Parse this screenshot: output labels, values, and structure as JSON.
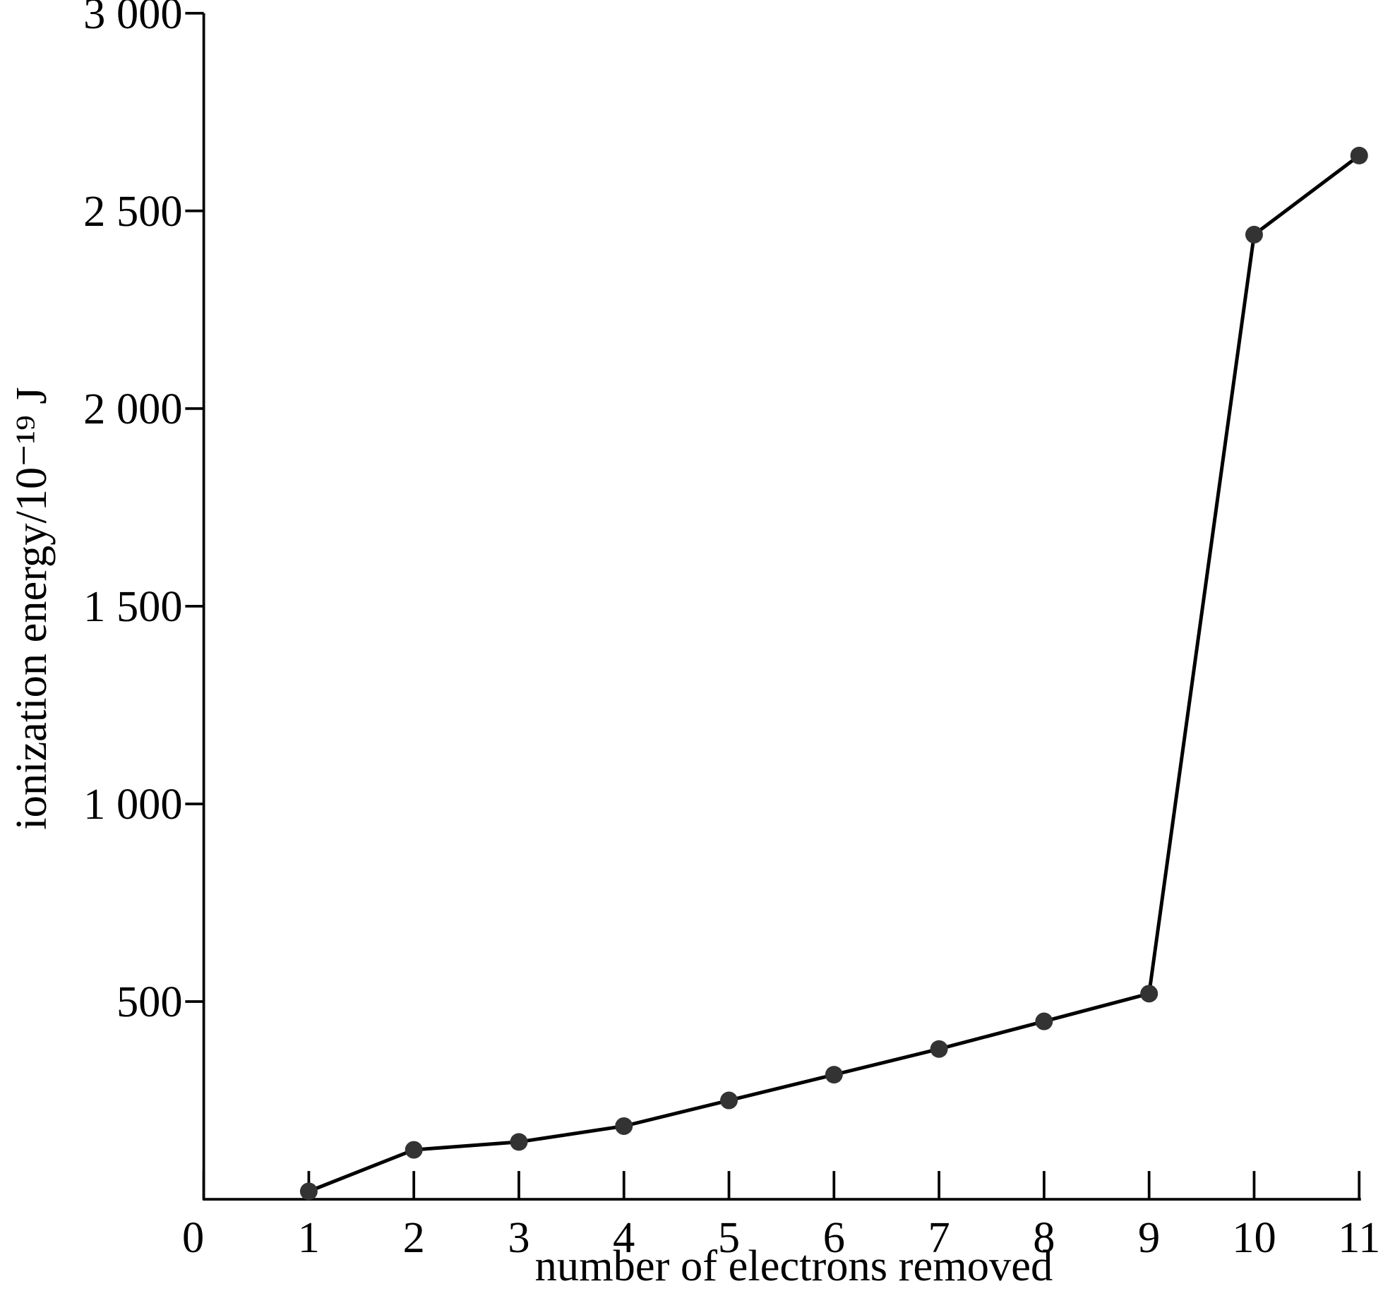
{
  "chart_data": {
    "type": "line",
    "x_label": "number of electrons removed",
    "y_label": "ionization energy/10⁻¹⁹ J",
    "x": [
      1,
      2,
      3,
      4,
      5,
      6,
      7,
      8,
      9,
      10,
      11
    ],
    "values": [
      20,
      125,
      145,
      185,
      250,
      315,
      380,
      450,
      520,
      2440,
      2640
    ],
    "color": "#000000",
    "marker_color": "#333333",
    "xlim": [
      0,
      11
    ],
    "xticks": [
      0,
      1,
      2,
      3,
      4,
      5,
      6,
      7,
      8,
      9,
      10,
      11
    ],
    "ylim": [
      0,
      3000
    ],
    "yticks": [
      500,
      {
        "value": 1000,
        "label": "1 000"
      },
      {
        "value": 1500,
        "label": "1 500"
      },
      {
        "value": 2000,
        "label": "2 000"
      },
      {
        "value": 2500,
        "label": "2 500"
      },
      {
        "value": 3000,
        "label": "3 000"
      }
    ],
    "grid": false
  }
}
